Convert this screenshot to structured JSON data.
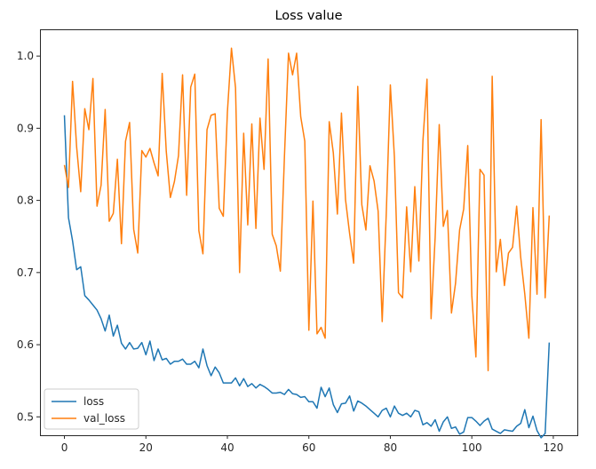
{
  "chart_data": {
    "type": "line",
    "title": "Loss value",
    "xlabel": "",
    "ylabel": "",
    "xlim": [
      -6,
      125.9
    ],
    "ylim": [
      0.4745,
      1.0371
    ],
    "xticks": [
      0,
      20,
      40,
      60,
      80,
      100,
      120
    ],
    "yticks": [
      0.5,
      0.6,
      0.7,
      0.8,
      0.9,
      1.0
    ],
    "ytick_labels": [
      "0.5",
      "0.6",
      "0.7",
      "0.8",
      "0.9",
      "1.0"
    ],
    "grid": false,
    "legend_position": "lower-left",
    "series": [
      {
        "name": "loss",
        "color": "#1f77b4",
        "values": [
          0.918,
          0.776,
          0.744,
          0.704,
          0.708,
          0.668,
          0.662,
          0.655,
          0.648,
          0.636,
          0.619,
          0.641,
          0.612,
          0.627,
          0.602,
          0.594,
          0.603,
          0.594,
          0.595,
          0.603,
          0.586,
          0.605,
          0.578,
          0.594,
          0.579,
          0.581,
          0.573,
          0.577,
          0.577,
          0.58,
          0.573,
          0.573,
          0.577,
          0.568,
          0.594,
          0.571,
          0.557,
          0.569,
          0.561,
          0.547,
          0.547,
          0.547,
          0.554,
          0.543,
          0.553,
          0.542,
          0.546,
          0.54,
          0.545,
          0.542,
          0.538,
          0.533,
          0.533,
          0.534,
          0.531,
          0.538,
          0.532,
          0.531,
          0.527,
          0.528,
          0.521,
          0.521,
          0.512,
          0.541,
          0.528,
          0.54,
          0.517,
          0.506,
          0.518,
          0.519,
          0.529,
          0.508,
          0.522,
          0.519,
          0.515,
          0.51,
          0.505,
          0.5,
          0.509,
          0.512,
          0.5,
          0.515,
          0.505,
          0.502,
          0.505,
          0.5,
          0.509,
          0.507,
          0.489,
          0.492,
          0.487,
          0.496,
          0.48,
          0.493,
          0.5,
          0.484,
          0.486,
          0.476,
          0.479,
          0.499,
          0.499,
          0.494,
          0.488,
          0.494,
          0.498,
          0.483,
          0.48,
          0.477,
          0.482,
          0.481,
          0.48,
          0.487,
          0.491,
          0.51,
          0.485,
          0.501,
          0.481,
          0.471,
          0.477,
          0.603
        ]
      },
      {
        "name": "val_loss",
        "color": "#ff7f0e",
        "values": [
          0.849,
          0.818,
          0.965,
          0.874,
          0.812,
          0.927,
          0.898,
          0.969,
          0.792,
          0.821,
          0.926,
          0.771,
          0.782,
          0.857,
          0.74,
          0.882,
          0.908,
          0.76,
          0.727,
          0.869,
          0.86,
          0.872,
          0.852,
          0.834,
          0.976,
          0.868,
          0.804,
          0.826,
          0.862,
          0.974,
          0.807,
          0.957,
          0.975,
          0.758,
          0.726,
          0.898,
          0.918,
          0.92,
          0.789,
          0.778,
          0.922,
          1.011,
          0.956,
          0.7,
          0.893,
          0.766,
          0.906,
          0.761,
          0.914,
          0.843,
          0.996,
          0.753,
          0.737,
          0.702,
          0.86,
          1.004,
          0.974,
          1.004,
          0.916,
          0.882,
          0.62,
          0.799,
          0.615,
          0.624,
          0.609,
          0.909,
          0.866,
          0.781,
          0.921,
          0.801,
          0.754,
          0.713,
          0.958,
          0.794,
          0.759,
          0.848,
          0.827,
          0.785,
          0.632,
          0.782,
          0.96,
          0.86,
          0.672,
          0.665,
          0.791,
          0.701,
          0.819,
          0.716,
          0.883,
          0.968,
          0.636,
          0.749,
          0.905,
          0.764,
          0.786,
          0.644,
          0.685,
          0.759,
          0.788,
          0.876,
          0.668,
          0.583,
          0.843,
          0.835,
          0.564,
          0.972,
          0.701,
          0.746,
          0.682,
          0.727,
          0.735,
          0.792,
          0.721,
          0.67,
          0.609,
          0.79,
          0.67,
          0.912,
          0.665,
          0.779
        ]
      }
    ]
  }
}
